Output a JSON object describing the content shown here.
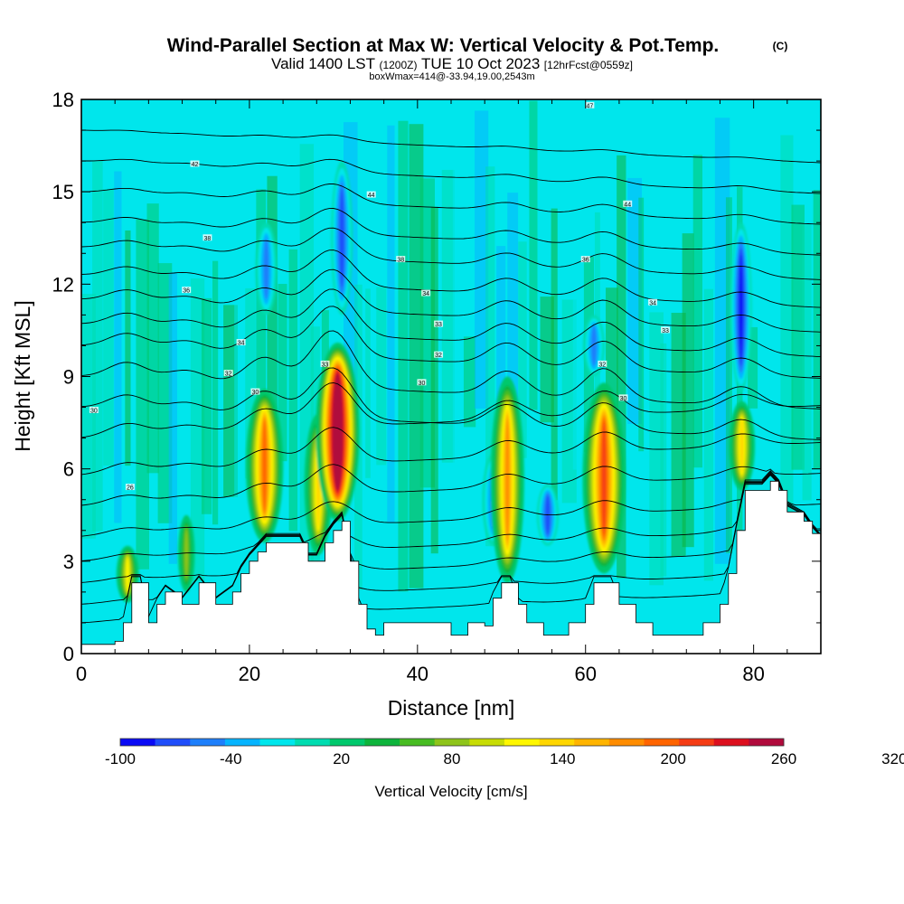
{
  "header": {
    "title": "Wind-Parallel Section at Max W: Vertical Velocity & Pot.Temp.",
    "title_mark": "(C)",
    "valid_a": "Valid 1400 LST",
    "valid_b": "(1200Z)",
    "valid_c": "TUE 10 Oct 2023",
    "valid_d": "[12hrFcst@0559z]",
    "box_info": "boxWmax=414@-33.94,19.00,2543m"
  },
  "chart_data": {
    "type": "heatmap",
    "xlabel": "Distance [nm]",
    "ylabel": "Height [Kft MSL]",
    "xlim": [
      0,
      88
    ],
    "ylim": [
      0,
      18
    ],
    "xticks": [
      0,
      20,
      40,
      60,
      80
    ],
    "yticks": [
      0,
      3,
      6,
      9,
      12,
      15,
      18
    ],
    "terrain_profile_kft": {
      "x": [
        0,
        2,
        4,
        5,
        6,
        7,
        8,
        9,
        10,
        12,
        14,
        16,
        18,
        19,
        20,
        21,
        22,
        24,
        26,
        27,
        28,
        29,
        30,
        31,
        32,
        33,
        34,
        35,
        36,
        38,
        40,
        42,
        44,
        46,
        48,
        49,
        50,
        51,
        52,
        53,
        54,
        55,
        56,
        58,
        60,
        61,
        62,
        63,
        64,
        66,
        68,
        70,
        72,
        74,
        76,
        77,
        78,
        79,
        80,
        81,
        82,
        83,
        84,
        86,
        87,
        88
      ],
      "y": [
        0.3,
        0.3,
        0.4,
        1.0,
        2.3,
        2.3,
        1.0,
        1.6,
        2.0,
        1.6,
        2.3,
        1.6,
        2.0,
        2.6,
        3.0,
        3.3,
        3.6,
        3.6,
        3.6,
        3.0,
        3.0,
        3.6,
        4.0,
        4.3,
        3.0,
        1.6,
        0.8,
        0.6,
        1.0,
        1.0,
        1.0,
        1.0,
        0.6,
        1.0,
        0.9,
        1.8,
        2.3,
        2.3,
        1.6,
        1.0,
        1.0,
        0.6,
        0.6,
        1.0,
        1.6,
        2.3,
        2.3,
        2.3,
        1.6,
        1.0,
        0.6,
        0.6,
        0.6,
        1.0,
        1.6,
        2.6,
        4.0,
        5.3,
        5.3,
        5.3,
        5.6,
        5.3,
        4.6,
        4.3,
        3.9,
        3.6
      ]
    },
    "updrafts_cm_s": [
      {
        "x_nm": 5.5,
        "base_kft": 1.0,
        "top_kft": 3.5,
        "peak": 120
      },
      {
        "x_nm": 12.5,
        "base_kft": 2.0,
        "top_kft": 4.5,
        "peak": 80
      },
      {
        "x_nm": 21.8,
        "base_kft": 3.6,
        "top_kft": 8.6,
        "peak": 200
      },
      {
        "x_nm": 28.2,
        "base_kft": 3.2,
        "top_kft": 7.8,
        "peak": 150
      },
      {
        "x_nm": 30.5,
        "base_kft": 4.3,
        "top_kft": 10.1,
        "peak": 320
      },
      {
        "x_nm": 50.7,
        "base_kft": 2.3,
        "top_kft": 9.0,
        "peak": 180
      },
      {
        "x_nm": 62.2,
        "base_kft": 2.6,
        "top_kft": 8.8,
        "peak": 230
      },
      {
        "x_nm": 78.6,
        "base_kft": 5.3,
        "top_kft": 8.2,
        "peak": 140
      }
    ],
    "downdrafts_cm_s": [
      {
        "x_nm": 22.0,
        "base_kft": 11.0,
        "top_kft": 14.0,
        "peak": -60
      },
      {
        "x_nm": 31.0,
        "base_kft": 11.0,
        "top_kft": 16.0,
        "peak": -80
      },
      {
        "x_nm": 49.0,
        "base_kft": 3.5,
        "top_kft": 6.5,
        "peak": -60
      },
      {
        "x_nm": 55.5,
        "base_kft": 3.5,
        "top_kft": 5.5,
        "peak": -80
      },
      {
        "x_nm": 61.0,
        "base_kft": 9.0,
        "top_kft": 11.0,
        "peak": -60
      },
      {
        "x_nm": 78.5,
        "base_kft": 8.5,
        "top_kft": 14.0,
        "peak": -100
      }
    ],
    "isentropes_left_kft": [
      1.0,
      1.6,
      2.3,
      3.0,
      3.8,
      4.8,
      5.8,
      7.0,
      8.0,
      9.0,
      10.0,
      10.7,
      11.5,
      12.3,
      13.2,
      14.0,
      15.0,
      16.0,
      17.0
    ],
    "isentrope_labels": [
      {
        "x_nm": 5.8,
        "y_kft": 5.4,
        "text": "26"
      },
      {
        "x_nm": 1.5,
        "y_kft": 7.9,
        "text": "30"
      },
      {
        "x_nm": 17.5,
        "y_kft": 9.1,
        "text": "32"
      },
      {
        "x_nm": 20.7,
        "y_kft": 8.5,
        "text": "30"
      },
      {
        "x_nm": 19.0,
        "y_kft": 10.1,
        "text": "34"
      },
      {
        "x_nm": 12.5,
        "y_kft": 11.8,
        "text": "36"
      },
      {
        "x_nm": 15.0,
        "y_kft": 13.5,
        "text": "38"
      },
      {
        "x_nm": 13.5,
        "y_kft": 15.9,
        "text": "42"
      },
      {
        "x_nm": 29.0,
        "y_kft": 9.4,
        "text": "33"
      },
      {
        "x_nm": 34.5,
        "y_kft": 14.9,
        "text": "44"
      },
      {
        "x_nm": 38.0,
        "y_kft": 12.8,
        "text": "38"
      },
      {
        "x_nm": 41.0,
        "y_kft": 11.7,
        "text": "34"
      },
      {
        "x_nm": 42.5,
        "y_kft": 10.7,
        "text": "33"
      },
      {
        "x_nm": 42.5,
        "y_kft": 9.7,
        "text": "32"
      },
      {
        "x_nm": 40.5,
        "y_kft": 8.8,
        "text": "30"
      },
      {
        "x_nm": 60.0,
        "y_kft": 12.8,
        "text": "36"
      },
      {
        "x_nm": 62.0,
        "y_kft": 9.4,
        "text": "32"
      },
      {
        "x_nm": 64.5,
        "y_kft": 8.3,
        "text": "30"
      },
      {
        "x_nm": 65.0,
        "y_kft": 14.6,
        "text": "44"
      },
      {
        "x_nm": 68.0,
        "y_kft": 11.4,
        "text": "34"
      },
      {
        "x_nm": 69.5,
        "y_kft": 10.5,
        "text": "33"
      },
      {
        "x_nm": 60.5,
        "y_kft": 17.8,
        "text": "47"
      }
    ],
    "colorbar": {
      "title": "Vertical Velocity [cm/s]",
      "min": -100,
      "step": 20,
      "tick_labels": [
        "-100",
        "-40",
        "20",
        "80",
        "140",
        "200",
        "260",
        "320"
      ],
      "tick_values": [
        -100,
        -40,
        20,
        80,
        140,
        200,
        260,
        320
      ],
      "colors": [
        "#0a0af5",
        "#1f4dfa",
        "#1e7ffb",
        "#05b4ff",
        "#00e6ec",
        "#00dcb0",
        "#00c86c",
        "#0db43c",
        "#47bc22",
        "#8ec41a",
        "#c7dc04",
        "#fff700",
        "#ffd600",
        "#ffb400",
        "#ff8c00",
        "#ff6400",
        "#f53c14",
        "#dc0f1e",
        "#b00a3c"
      ]
    }
  }
}
